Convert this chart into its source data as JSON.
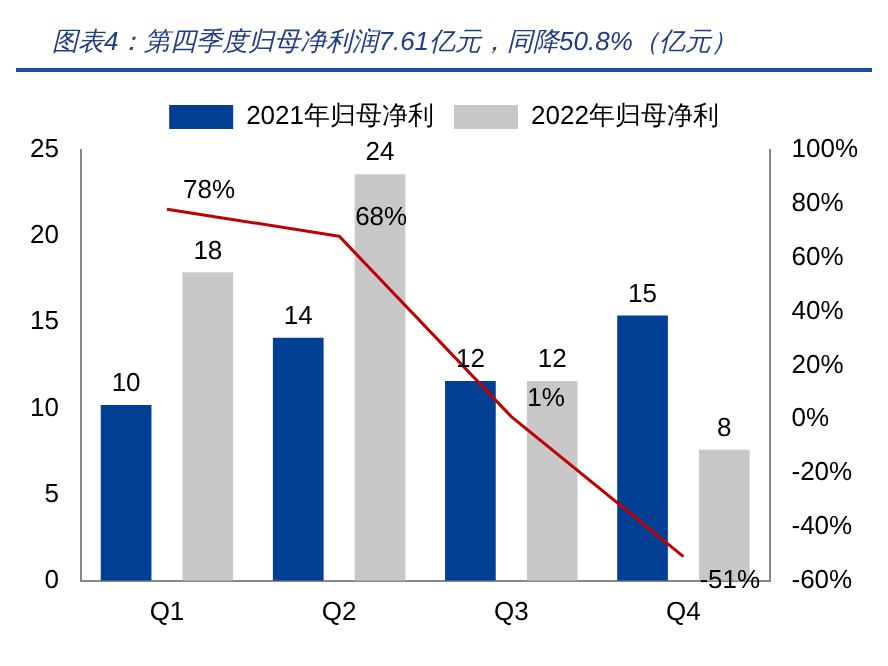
{
  "chart_data": {
    "type": "bar",
    "title": "图表4：第四季度归母净利润7.61亿元，同降50.8%（亿元）",
    "categories": [
      "Q1",
      "Q2",
      "Q3",
      "Q4"
    ],
    "series": [
      {
        "name": "2021年归母净利",
        "color": "#003f93",
        "values": [
          10.2,
          14.1,
          11.6,
          15.4
        ],
        "value_labels": [
          "10",
          "14",
          "12",
          "15"
        ]
      },
      {
        "name": "2022年归母净利",
        "color": "#c8c8c8",
        "values": [
          17.9,
          23.6,
          11.6,
          7.6
        ],
        "value_labels": [
          "18",
          "24",
          "12",
          "8"
        ]
      },
      {
        "type": "line",
        "axis": "y2",
        "color": "#c00000",
        "values": [
          78,
          68,
          1,
          -51
        ],
        "value_labels": [
          "78%",
          "68%",
          "1%",
          "-51%"
        ]
      }
    ],
    "ylim": [
      0,
      25
    ],
    "yticks": [
      0,
      5,
      10,
      15,
      20,
      25
    ],
    "y2lim": [
      -60,
      100
    ],
    "y2ticks": [
      {
        "value": -60,
        "label": "-60%"
      },
      {
        "value": -40,
        "label": "-40%"
      },
      {
        "value": -20,
        "label": "-20%"
      },
      {
        "value": 0,
        "label": "0%"
      },
      {
        "value": 20,
        "label": "20%"
      },
      {
        "value": 40,
        "label": "40%"
      },
      {
        "value": 60,
        "label": "60%"
      },
      {
        "value": 80,
        "label": "80%"
      },
      {
        "value": 100,
        "label": "100%"
      }
    ],
    "legend": "top",
    "grid": false
  }
}
